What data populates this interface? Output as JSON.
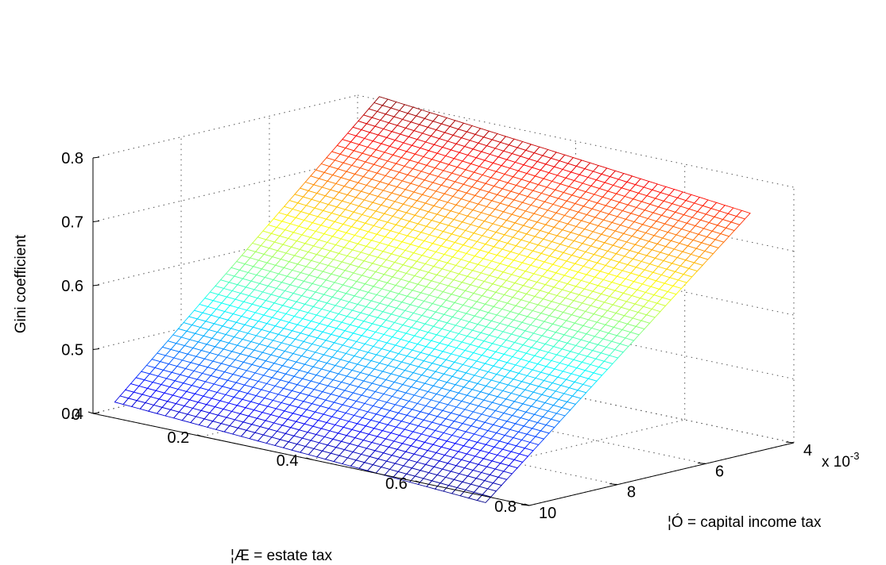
{
  "chart_data": {
    "type": "surface",
    "title": "",
    "xlabel": "¦Æ = estate tax",
    "ylabel": "¦Ó = capital income tax",
    "zlabel": "Gini coefficient",
    "y_exponent_base": "x 10",
    "y_exponent_power": "-3",
    "xlim": [
      0,
      0.8
    ],
    "ylim": [
      0.004,
      0.01
    ],
    "zlim": [
      0.4,
      0.8
    ],
    "x_ticks": [
      "0",
      "0.2",
      "0.4",
      "0.6",
      "0.8"
    ],
    "y_ticks": [
      "4",
      "6",
      "8",
      "10"
    ],
    "z_ticks": [
      "0.4",
      "0.5",
      "0.6",
      "0.7",
      "0.8"
    ],
    "grid": true,
    "colormap": "jet",
    "surface_x_range": [
      0.04,
      0.72
    ],
    "surface_y_range": [
      0.004,
      0.01
    ],
    "corner_values": {
      "x_0.04_y_0.004": 0.805,
      "x_0.72_y_0.004": 0.745,
      "x_0.04_y_0.010": 0.425,
      "x_0.72_y_0.010": 0.39
    }
  }
}
